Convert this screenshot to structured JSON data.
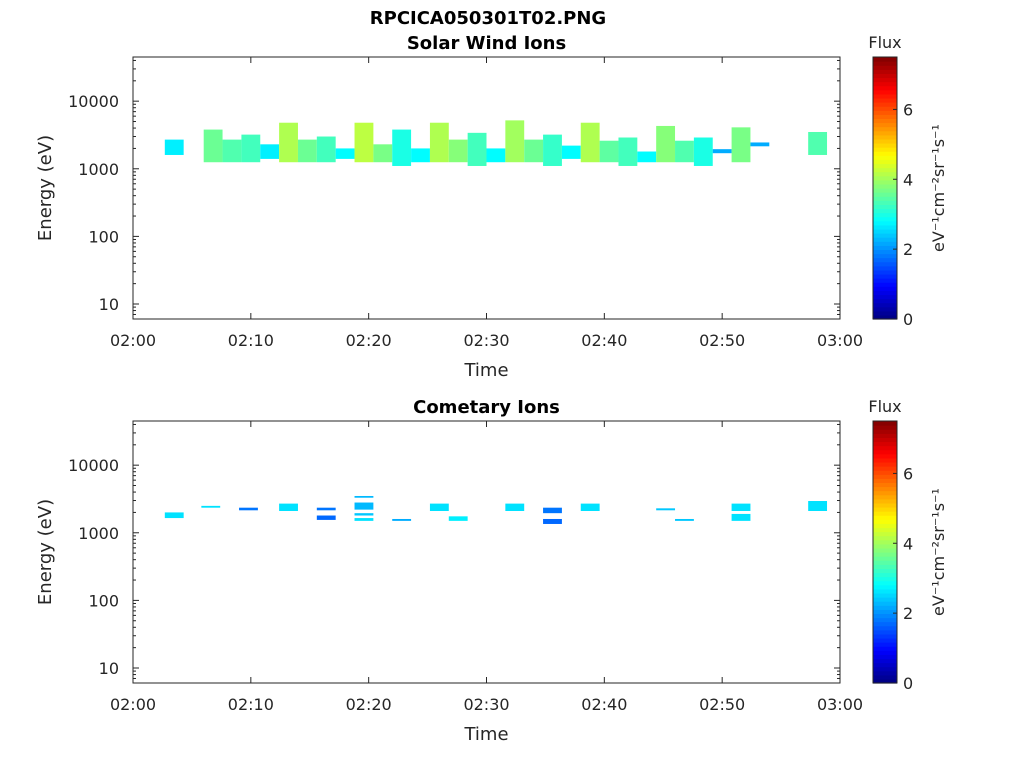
{
  "figure_title": "RPCICA050301T02.PNG",
  "chart_data": [
    {
      "type": "heatmap",
      "title": "Solar Wind Ions",
      "xlabel": "Time",
      "ylabel": "Energy (eV)",
      "xlim": [
        "02:00",
        "03:00"
      ],
      "x_ticks": [
        "02:00",
        "02:10",
        "02:20",
        "02:30",
        "02:40",
        "02:50",
        "03:00"
      ],
      "ylim": [
        6,
        45000
      ],
      "y_scale": "log",
      "y_ticks": [
        "10",
        "100",
        "1000",
        "10000"
      ],
      "colorbar": {
        "title": "Flux",
        "label": "eV⁻¹cm⁻²sr⁻¹s⁻¹",
        "range": [
          0,
          7.5
        ],
        "ticks": [
          "0",
          "2",
          "4",
          "6"
        ],
        "colormap": "jet"
      },
      "cells": [
        {
          "t0": 2.7,
          "t1": 4.3,
          "e0": 1600,
          "e1": 2700,
          "v": 2.7
        },
        {
          "t0": 6.0,
          "t1": 7.6,
          "e0": 1250,
          "e1": 3800,
          "v": 3.6
        },
        {
          "t0": 7.6,
          "t1": 9.2,
          "e0": 1250,
          "e1": 2700,
          "v": 3.4
        },
        {
          "t0": 9.2,
          "t1": 10.8,
          "e0": 1250,
          "e1": 3200,
          "v": 3.3
        },
        {
          "t0": 10.8,
          "t1": 12.4,
          "e0": 1400,
          "e1": 2300,
          "v": 2.7
        },
        {
          "t0": 12.4,
          "t1": 14.0,
          "e0": 1250,
          "e1": 4800,
          "v": 4.1
        },
        {
          "t0": 14.0,
          "t1": 15.6,
          "e0": 1250,
          "e1": 2700,
          "v": 3.6
        },
        {
          "t0": 15.6,
          "t1": 17.2,
          "e0": 1250,
          "e1": 3000,
          "v": 3.3
        },
        {
          "t0": 17.2,
          "t1": 18.8,
          "e0": 1400,
          "e1": 2000,
          "v": 2.8
        },
        {
          "t0": 18.8,
          "t1": 20.4,
          "e0": 1250,
          "e1": 4800,
          "v": 4.2
        },
        {
          "t0": 20.4,
          "t1": 22.0,
          "e0": 1250,
          "e1": 2300,
          "v": 3.7
        },
        {
          "t0": 22.0,
          "t1": 23.6,
          "e0": 1100,
          "e1": 3800,
          "v": 3.0
        },
        {
          "t0": 23.6,
          "t1": 25.2,
          "e0": 1250,
          "e1": 2000,
          "v": 2.8
        },
        {
          "t0": 25.2,
          "t1": 26.8,
          "e0": 1250,
          "e1": 4800,
          "v": 4.1
        },
        {
          "t0": 26.8,
          "t1": 28.4,
          "e0": 1250,
          "e1": 2700,
          "v": 3.8
        },
        {
          "t0": 28.4,
          "t1": 30.0,
          "e0": 1100,
          "e1": 3400,
          "v": 3.3
        },
        {
          "t0": 30.0,
          "t1": 31.6,
          "e0": 1250,
          "e1": 2000,
          "v": 2.8
        },
        {
          "t0": 31.6,
          "t1": 33.2,
          "e0": 1250,
          "e1": 5200,
          "v": 4.0
        },
        {
          "t0": 33.2,
          "t1": 34.8,
          "e0": 1250,
          "e1": 2700,
          "v": 3.6
        },
        {
          "t0": 34.8,
          "t1": 36.4,
          "e0": 1100,
          "e1": 3200,
          "v": 3.2
        },
        {
          "t0": 36.4,
          "t1": 38.0,
          "e0": 1400,
          "e1": 2200,
          "v": 2.8
        },
        {
          "t0": 38.0,
          "t1": 39.6,
          "e0": 1250,
          "e1": 4800,
          "v": 4.1
        },
        {
          "t0": 39.6,
          "t1": 41.2,
          "e0": 1250,
          "e1": 2600,
          "v": 3.5
        },
        {
          "t0": 41.2,
          "t1": 42.8,
          "e0": 1100,
          "e1": 2900,
          "v": 3.3
        },
        {
          "t0": 42.8,
          "t1": 44.4,
          "e0": 1250,
          "e1": 1800,
          "v": 2.8
        },
        {
          "t0": 44.4,
          "t1": 46.0,
          "e0": 1250,
          "e1": 4300,
          "v": 3.8
        },
        {
          "t0": 46.0,
          "t1": 47.6,
          "e0": 1250,
          "e1": 2600,
          "v": 3.4
        },
        {
          "t0": 47.6,
          "t1": 49.2,
          "e0": 1100,
          "e1": 2900,
          "v": 3.0
        },
        {
          "t0": 49.2,
          "t1": 50.8,
          "e0": 1700,
          "e1": 1950,
          "v": 2.2
        },
        {
          "t0": 50.8,
          "t1": 52.4,
          "e0": 1250,
          "e1": 4100,
          "v": 3.7
        },
        {
          "t0": 52.4,
          "t1": 54.0,
          "e0": 2150,
          "e1": 2450,
          "v": 2.2
        },
        {
          "t0": 57.3,
          "t1": 58.9,
          "e0": 1600,
          "e1": 3500,
          "v": 3.4
        }
      ]
    },
    {
      "type": "heatmap",
      "title": "Cometary Ions",
      "xlabel": "Time",
      "ylabel": "Energy (eV)",
      "xlim": [
        "02:00",
        "03:00"
      ],
      "x_ticks": [
        "02:00",
        "02:10",
        "02:20",
        "02:30",
        "02:40",
        "02:50",
        "03:00"
      ],
      "ylim": [
        6,
        45000
      ],
      "y_scale": "log",
      "y_ticks": [
        "10",
        "100",
        "1000",
        "10000"
      ],
      "colorbar": {
        "title": "Flux",
        "label": "eV⁻¹cm⁻²sr⁻¹s⁻¹",
        "range": [
          0,
          7.5
        ],
        "ticks": [
          "0",
          "2",
          "4",
          "6"
        ],
        "colormap": "jet"
      },
      "cells": [
        {
          "t0": 2.7,
          "t1": 4.3,
          "e0": 1650,
          "e1": 2000,
          "v": 2.6
        },
        {
          "t0": 5.8,
          "t1": 7.4,
          "e0": 2350,
          "e1": 2500,
          "v": 2.6
        },
        {
          "t0": 9.0,
          "t1": 10.6,
          "e0": 2150,
          "e1": 2350,
          "v": 1.8
        },
        {
          "t0": 12.4,
          "t1": 14.0,
          "e0": 2100,
          "e1": 2700,
          "v": 2.6
        },
        {
          "t0": 15.6,
          "t1": 17.2,
          "e0": 2150,
          "e1": 2350,
          "v": 1.8
        },
        {
          "t0": 15.6,
          "t1": 17.2,
          "e0": 1550,
          "e1": 1800,
          "v": 1.7
        },
        {
          "t0": 18.8,
          "t1": 20.4,
          "e0": 3300,
          "e1": 3500,
          "v": 2.3
        },
        {
          "t0": 18.8,
          "t1": 20.4,
          "e0": 2200,
          "e1": 2800,
          "v": 2.3
        },
        {
          "t0": 18.8,
          "t1": 20.4,
          "e0": 1800,
          "e1": 1950,
          "v": 2.4
        },
        {
          "t0": 18.8,
          "t1": 20.4,
          "e0": 1500,
          "e1": 1650,
          "v": 2.6
        },
        {
          "t0": 22.0,
          "t1": 23.6,
          "e0": 1500,
          "e1": 1600,
          "v": 2.2
        },
        {
          "t0": 25.2,
          "t1": 26.8,
          "e0": 2100,
          "e1": 2700,
          "v": 2.6
        },
        {
          "t0": 26.8,
          "t1": 28.4,
          "e0": 1500,
          "e1": 1750,
          "v": 2.7
        },
        {
          "t0": 31.6,
          "t1": 33.2,
          "e0": 2100,
          "e1": 2700,
          "v": 2.6
        },
        {
          "t0": 34.8,
          "t1": 36.4,
          "e0": 1950,
          "e1": 2350,
          "v": 1.8
        },
        {
          "t0": 34.8,
          "t1": 36.4,
          "e0": 1350,
          "e1": 1600,
          "v": 1.7
        },
        {
          "t0": 38.0,
          "t1": 39.6,
          "e0": 2100,
          "e1": 2700,
          "v": 2.6
        },
        {
          "t0": 44.4,
          "t1": 46.0,
          "e0": 2150,
          "e1": 2300,
          "v": 2.4
        },
        {
          "t0": 46.0,
          "t1": 47.6,
          "e0": 1500,
          "e1": 1600,
          "v": 2.4
        },
        {
          "t0": 50.8,
          "t1": 52.4,
          "e0": 2100,
          "e1": 2700,
          "v": 2.6
        },
        {
          "t0": 50.8,
          "t1": 52.4,
          "e0": 1500,
          "e1": 1900,
          "v": 2.6
        },
        {
          "t0": 57.3,
          "t1": 58.9,
          "e0": 2100,
          "e1": 2950,
          "v": 2.6
        }
      ]
    }
  ]
}
